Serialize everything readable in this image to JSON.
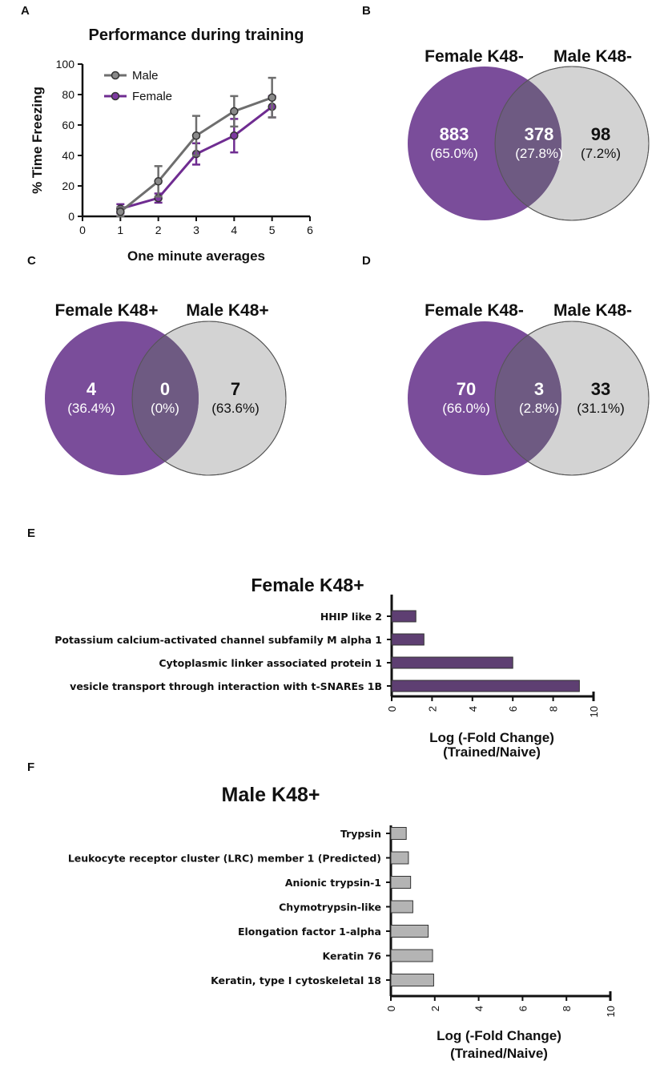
{
  "colors": {
    "female": "#6f2c91",
    "male": "#6e6e6e",
    "venn_female": "#7a4d9a",
    "venn_male": "#d3d3d3",
    "venn_overlap": "#6e5a82",
    "bar_female": "#5e3f72",
    "bar_male": "#b4b4b4"
  },
  "chart_data": [
    {
      "panel": "A",
      "type": "line",
      "title": "Performance during training",
      "xlabel": "One minute averages",
      "ylabel": "% Time Freezing",
      "xlim": [
        0,
        6
      ],
      "ylim": [
        0,
        100
      ],
      "xticks": [
        "0",
        "1",
        "2",
        "3",
        "4",
        "5",
        "6"
      ],
      "yticks": [
        "0",
        "20",
        "40",
        "60",
        "80",
        "100"
      ],
      "series": [
        {
          "name": "Male",
          "x": [
            1,
            2,
            3,
            4,
            5
          ],
          "values": [
            3,
            23,
            53,
            69,
            78
          ],
          "error": [
            3,
            10,
            13,
            10,
            13
          ]
        },
        {
          "name": "Female",
          "x": [
            1,
            2,
            3,
            4,
            5
          ],
          "values": [
            5,
            12,
            41,
            53,
            72
          ],
          "error": [
            3,
            3,
            7,
            11,
            7
          ]
        }
      ]
    },
    {
      "panel": "B",
      "type": "venn",
      "sets": [
        "Female K48-",
        "Male K48-"
      ],
      "regions": [
        {
          "name": "female-only",
          "count": "883",
          "percent": "(65.0%)"
        },
        {
          "name": "overlap",
          "count": "378",
          "percent": "(27.8%)"
        },
        {
          "name": "male-only",
          "count": "98",
          "percent": "(7.2%)"
        }
      ]
    },
    {
      "panel": "C",
      "type": "venn",
      "sets": [
        "Female K48+",
        "Male K48+"
      ],
      "regions": [
        {
          "name": "female-only",
          "count": "4",
          "percent": "(36.4%)"
        },
        {
          "name": "overlap",
          "count": "0",
          "percent": "(0%)"
        },
        {
          "name": "male-only",
          "count": "7",
          "percent": "(63.6%)"
        }
      ]
    },
    {
      "panel": "D",
      "type": "venn",
      "sets": [
        "Female K48-",
        "Male K48-"
      ],
      "regions": [
        {
          "name": "female-only",
          "count": "70",
          "percent": "(66.0%)"
        },
        {
          "name": "overlap",
          "count": "3",
          "percent": "(2.8%)"
        },
        {
          "name": "male-only",
          "count": "33",
          "percent": "(31.1%)"
        }
      ]
    },
    {
      "panel": "E",
      "type": "bar",
      "orientation": "horizontal",
      "title": "Female K48+",
      "xlabel": "Log (-Fold Change)",
      "xlabel2": "(Trained/Naive)",
      "xlim": [
        0,
        10
      ],
      "xticks": [
        "0",
        "2",
        "4",
        "6",
        "8",
        "10"
      ],
      "categories": [
        "HHIP like 2",
        "Potassium calcium-activated channel subfamily M alpha 1",
        "Cytoplasmic linker associated protein 1",
        "vesicle transport through interaction with t-SNAREs 1B"
      ],
      "values": [
        1.2,
        1.6,
        6.0,
        9.3
      ]
    },
    {
      "panel": "F",
      "type": "bar",
      "orientation": "horizontal",
      "title": "Male K48+",
      "xlabel": "Log (-Fold Change)",
      "xlabel2": "(Trained/Naive)",
      "xlim": [
        0,
        10
      ],
      "xticks": [
        "0",
        "2",
        "4",
        "6",
        "8",
        "10"
      ],
      "categories": [
        "Trypsin",
        "Leukocyte receptor cluster (LRC) member 1 (Predicted)",
        "Anionic trypsin-1",
        "Chymotrypsin-like",
        "Elongation factor 1-alpha",
        "Keratin 76",
        "Keratin, type I cytoskeletal 18"
      ],
      "values": [
        0.7,
        0.8,
        0.9,
        1.0,
        1.7,
        1.9,
        1.95
      ]
    }
  ]
}
